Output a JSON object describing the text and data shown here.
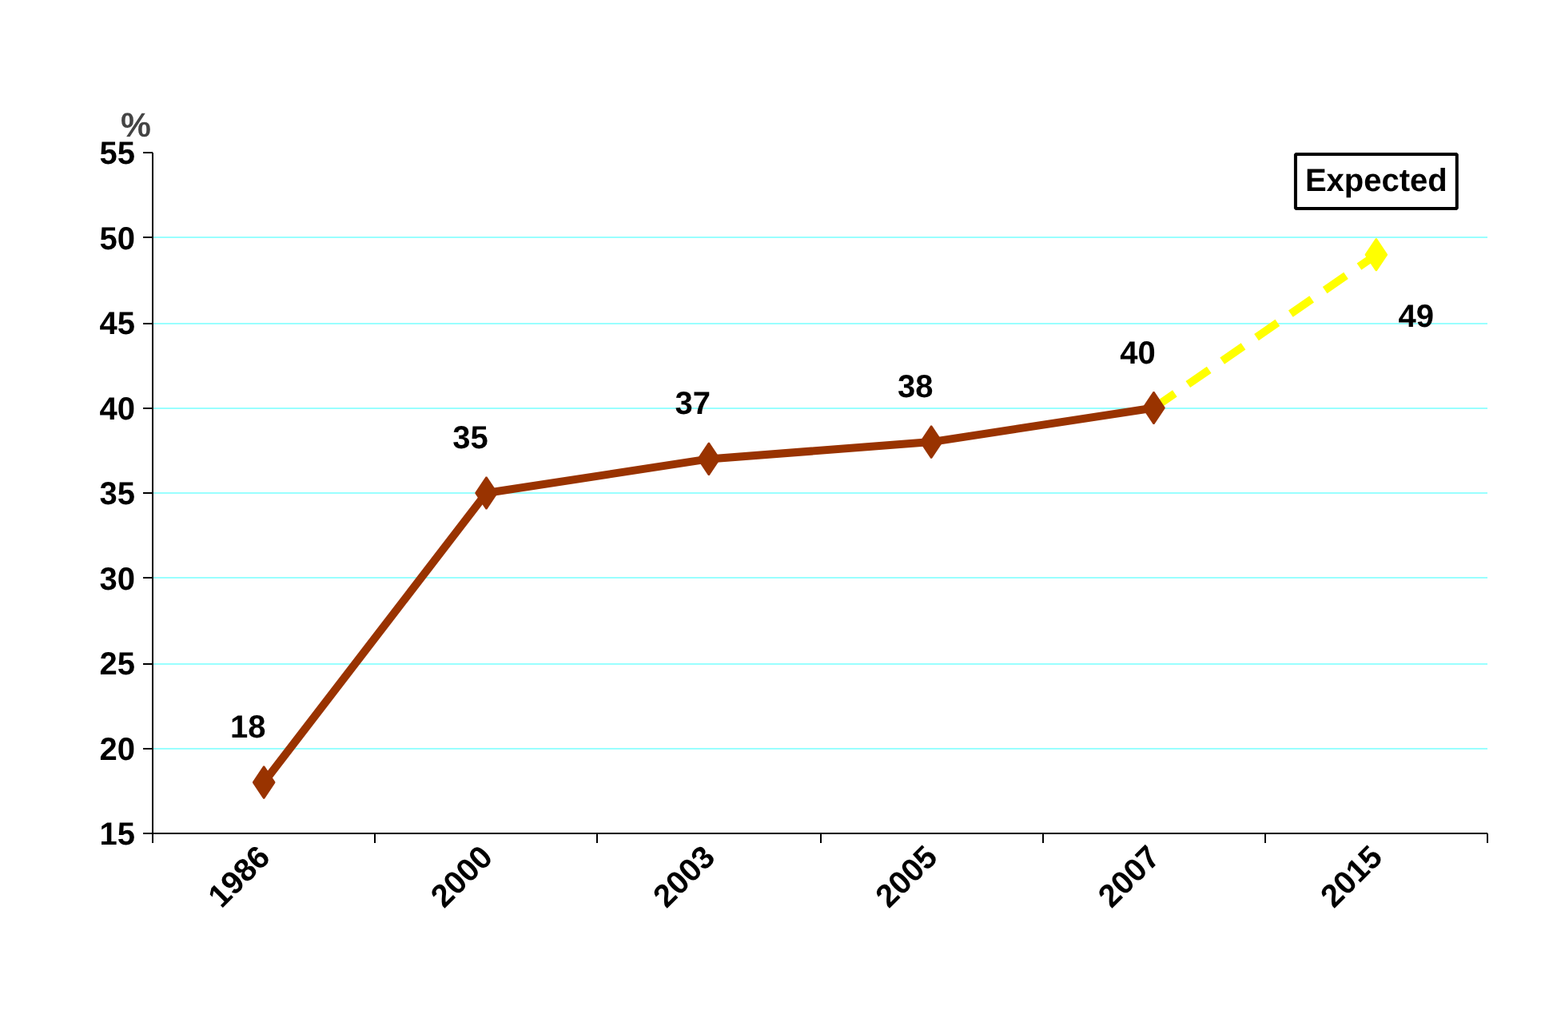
{
  "chart_data": {
    "type": "line",
    "ylabel": "%",
    "categories": [
      "1986",
      "2000",
      "2003",
      "2005",
      "2007",
      "2015"
    ],
    "series": [
      {
        "color": "#993300",
        "values": [
          18,
          35,
          37,
          38,
          40,
          null
        ],
        "value_labels": [
          "18",
          "35",
          "37",
          "38",
          "40",
          null
        ],
        "line_style": "solid",
        "marker": "diamond"
      },
      {
        "color": "#ffff00",
        "values": [
          null,
          null,
          null,
          null,
          40,
          49
        ],
        "value_labels": [
          null,
          null,
          null,
          null,
          null,
          "49"
        ],
        "line_style": "dashed",
        "marker": "diamond"
      }
    ],
    "ylim": [
      15,
      55
    ],
    "yticks": [
      15,
      20,
      25,
      30,
      35,
      40,
      45,
      50,
      55
    ],
    "grid": "y",
    "annotations": [
      "Expected"
    ]
  }
}
